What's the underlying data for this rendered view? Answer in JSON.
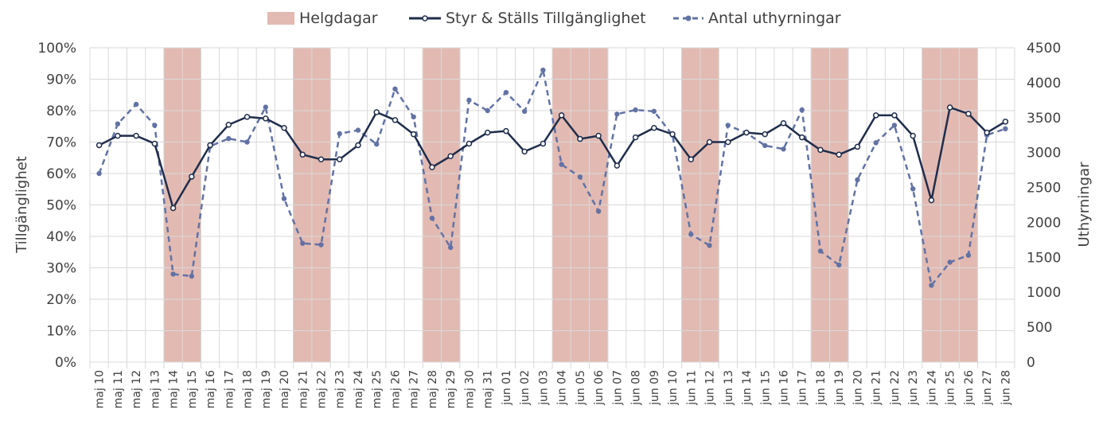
{
  "chart_data": {
    "type": "line",
    "categories": [
      "maj 10",
      "maj 11",
      "maj 12",
      "maj 13",
      "maj 14",
      "maj 15",
      "maj 16",
      "maj 17",
      "maj 18",
      "maj 19",
      "maj 20",
      "maj 21",
      "maj 22",
      "maj 23",
      "maj 24",
      "maj 25",
      "maj 26",
      "maj 27",
      "maj 28",
      "maj 29",
      "maj 30",
      "maj 31",
      "jun 01",
      "jun 02",
      "jun 03",
      "jun 04",
      "jun 05",
      "jun 06",
      "jun 07",
      "jun 08",
      "jun 09",
      "jun 10",
      "jun 11",
      "jun 12",
      "jun 13",
      "jun 14",
      "jun 15",
      "jun 16",
      "jun 17",
      "jun 18",
      "jun 19",
      "jun 20",
      "jun 21",
      "jun 22",
      "jun 23",
      "jun 24",
      "jun 25",
      "jun 26",
      "jun 27",
      "jun 28"
    ],
    "holidays": [
      {
        "from": "maj 14",
        "to": "maj 15"
      },
      {
        "from": "maj 21",
        "to": "maj 22"
      },
      {
        "from": "maj 28",
        "to": "maj 29"
      },
      {
        "from": "jun 04",
        "to": "jun 06"
      },
      {
        "from": "jun 11",
        "to": "jun 12"
      },
      {
        "from": "jun 18",
        "to": "jun 19"
      },
      {
        "from": "jun 24",
        "to": "jun 26"
      }
    ],
    "series": [
      {
        "name": "Styr & Ställs Tillgänglighet",
        "axis": "left",
        "style": "solid",
        "color": "#1f2d4b",
        "values": [
          69,
          72,
          72,
          69.5,
          49,
          59,
          69,
          75.5,
          78,
          77.5,
          74.5,
          66,
          64.5,
          64.5,
          69,
          79.5,
          77,
          72.5,
          62,
          65.5,
          69.5,
          73,
          73.5,
          67,
          69.5,
          78.5,
          71,
          72,
          62.5,
          71.5,
          74.5,
          72.5,
          64.5,
          70,
          70,
          73,
          72.5,
          76,
          71.5,
          67.5,
          66,
          68.5,
          78.5,
          78.5,
          72,
          51.5,
          81,
          79,
          73,
          76.5
        ]
      },
      {
        "name": "Antal uthyrningar",
        "axis": "right",
        "style": "dashed",
        "color": "#6272a4",
        "values": [
          2700,
          3410,
          3690,
          3390,
          1260,
          1230,
          3090,
          3200,
          3150,
          3650,
          2340,
          1700,
          1680,
          3270,
          3320,
          3120,
          3910,
          3510,
          2060,
          1640,
          3750,
          3600,
          3860,
          3590,
          4180,
          2830,
          2650,
          2160,
          3550,
          3610,
          3590,
          3250,
          1830,
          1670,
          3390,
          3280,
          3100,
          3050,
          3610,
          1590,
          1390,
          2610,
          3140,
          3390,
          2480,
          1100,
          1430,
          1530,
          3250,
          3340
        ]
      }
    ],
    "legend": [
      "Helgdagar",
      "Styr & Ställs Tillgänglighet",
      "Antal uthyrningar"
    ],
    "legend_position": "top",
    "ylabel_left": "Tillgänglighet",
    "ylabel_right": "Uthyrningar",
    "ylim_left": [
      0,
      100
    ],
    "ylim_right": [
      0,
      4500
    ],
    "yticks_left": [
      "0%",
      "10%",
      "20%",
      "30%",
      "40%",
      "50%",
      "60%",
      "70%",
      "80%",
      "90%",
      "100%"
    ],
    "yticks_right": [
      "0",
      "500",
      "1000",
      "1500",
      "2000",
      "2500",
      "3000",
      "3500",
      "4000",
      "4500"
    ],
    "grid": true,
    "colors": {
      "holiday_fill": "#e2bab2",
      "holiday_stroke": "#c8958c",
      "grid": "#d9d9d9",
      "text": "#404040"
    }
  }
}
